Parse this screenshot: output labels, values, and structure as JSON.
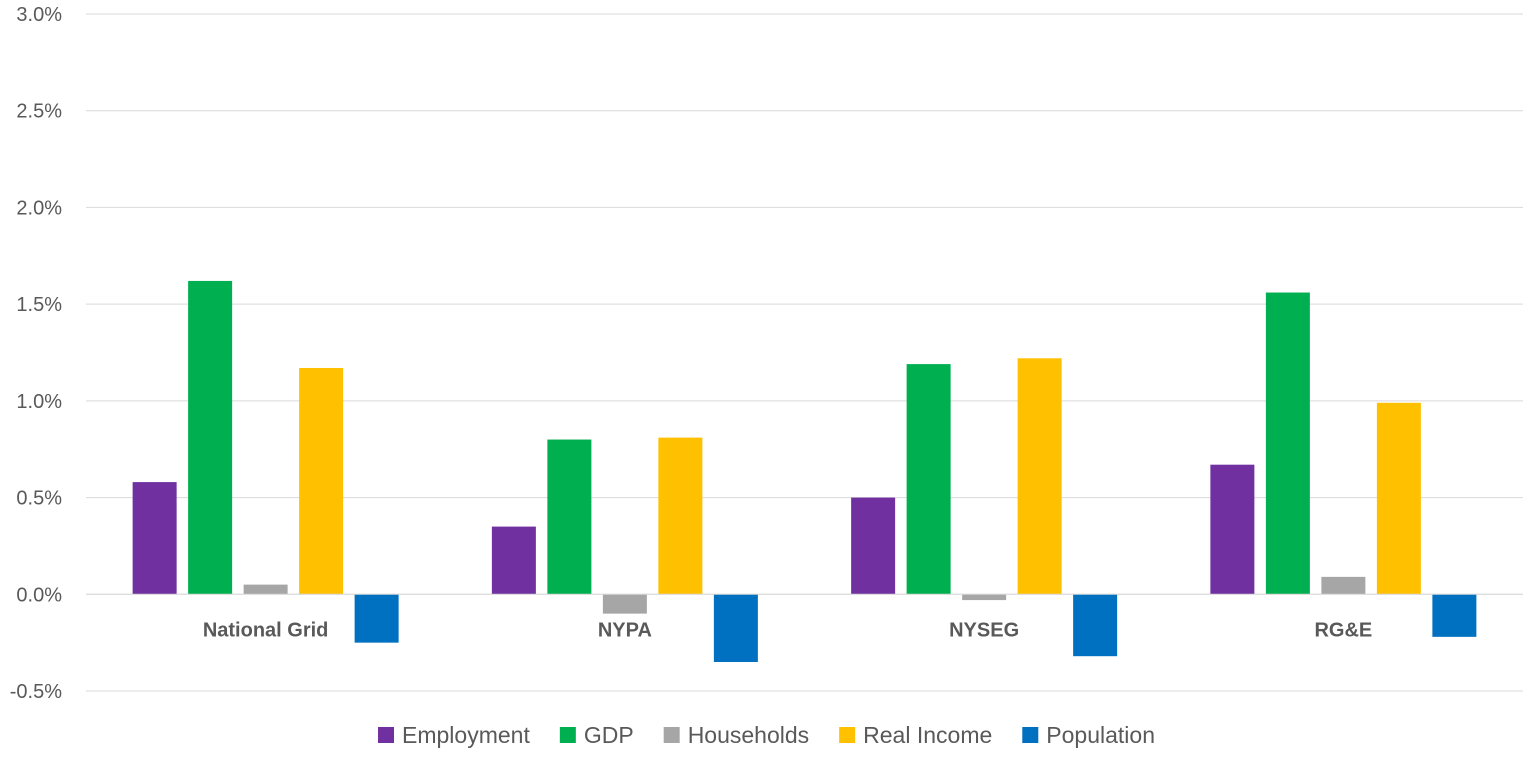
{
  "chart_data": {
    "type": "bar",
    "categories": [
      "National Grid",
      "NYPA",
      "NYSEG",
      "RG&E"
    ],
    "series": [
      {
        "name": "Employment",
        "color": "#7030A0",
        "values": [
          0.58,
          0.35,
          0.5,
          0.67
        ]
      },
      {
        "name": "GDP",
        "color": "#00B050",
        "values": [
          1.62,
          0.8,
          1.19,
          1.56
        ]
      },
      {
        "name": "Households",
        "color": "#A6A6A6",
        "values": [
          0.05,
          -0.1,
          -0.03,
          0.09
        ]
      },
      {
        "name": "Real Income",
        "color": "#FFC000",
        "values": [
          1.17,
          0.81,
          1.22,
          0.99
        ]
      },
      {
        "name": "Population",
        "color": "#0070C0",
        "values": [
          -0.25,
          -0.35,
          -0.32,
          -0.22
        ]
      }
    ],
    "title": "",
    "xlabel": "",
    "ylabel": "",
    "ylim": [
      -0.5,
      3.0
    ],
    "yticks": [
      "-0.5%",
      "0.0%",
      "0.5%",
      "1.0%",
      "1.5%",
      "2.0%",
      "2.5%",
      "3.0%"
    ],
    "grid": true,
    "legend_position": "bottom"
  }
}
